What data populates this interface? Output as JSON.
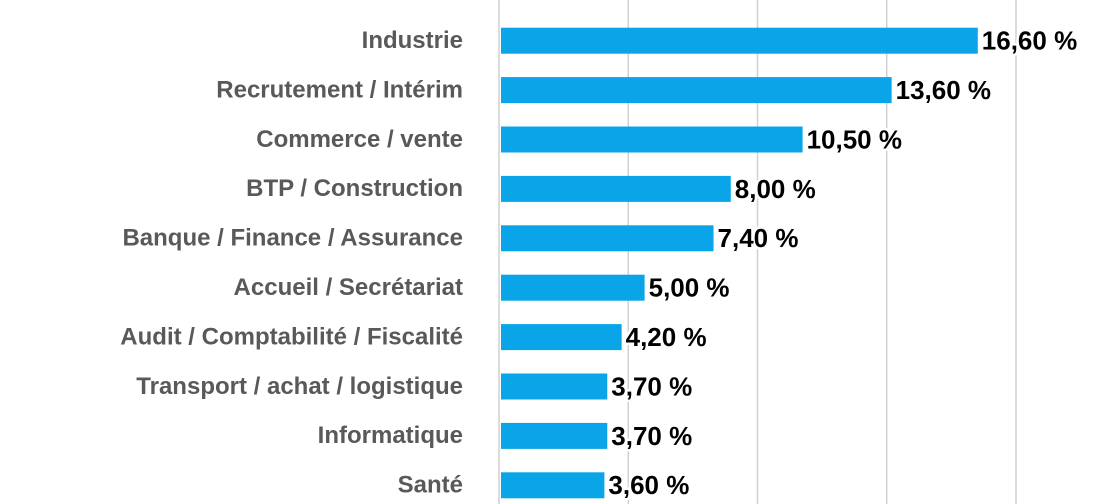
{
  "chart_data": {
    "type": "hbar",
    "categories": [
      "Industrie",
      "Recrutement / Intérim",
      "Commerce / vente",
      "BTP / Construction",
      "Banque / Finance / Assurance",
      "Accueil / Secrétariat",
      "Audit / Comptabilité / Fiscalité",
      "Transport / achat / logistique",
      "Informatique",
      "Santé"
    ],
    "values": [
      16.6,
      13.6,
      10.5,
      8.0,
      7.4,
      5.0,
      4.2,
      3.7,
      3.7,
      3.6
    ],
    "value_labels": [
      "16,60 %",
      "13,60 %",
      "10,50 %",
      "8,00 %",
      "7,40 %",
      "5,00 %",
      "4,20 %",
      "3,70 %",
      "3,70 %",
      "3,60 %"
    ],
    "color": "#0aa5e8",
    "xlim": [
      0,
      18
    ],
    "xticks": [
      0,
      4.5,
      9,
      13.5,
      18
    ],
    "grid": true
  }
}
